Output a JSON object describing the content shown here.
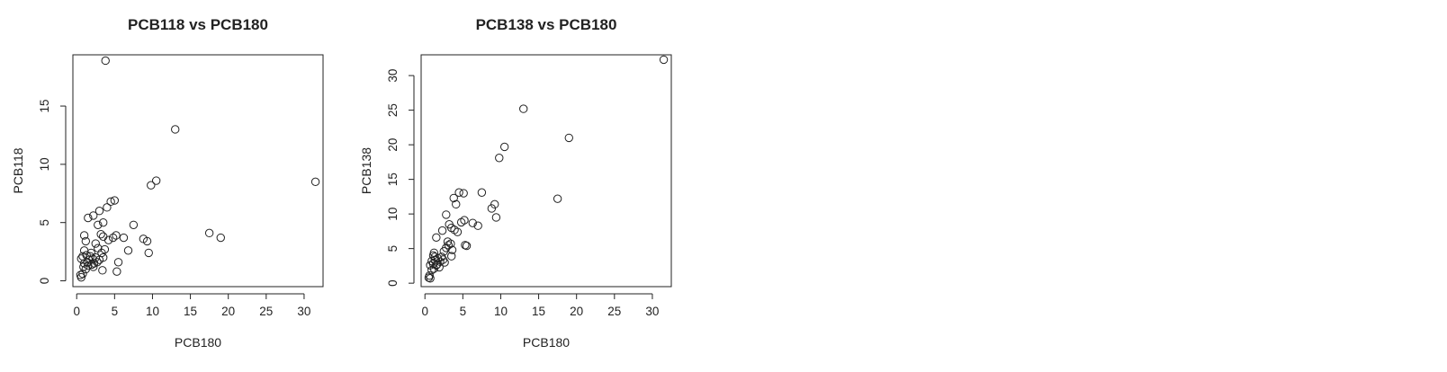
{
  "chart_data": [
    {
      "type": "scatter",
      "title": "PCB118 vs PCB180",
      "xlabel": "PCB180",
      "ylabel": "PCB118",
      "xlim": [
        -0.5,
        32.5
      ],
      "ylim": [
        -0.5,
        19.4
      ],
      "xticks": [
        0,
        5,
        10,
        15,
        20,
        25,
        30
      ],
      "yticks": [
        0,
        5,
        10,
        15
      ],
      "grid": false,
      "marker": "open-circle",
      "points": [
        [
          3.8,
          18.9
        ],
        [
          13.0,
          13.0
        ],
        [
          31.5,
          8.5
        ],
        [
          10.5,
          8.6
        ],
        [
          9.8,
          8.2
        ],
        [
          5.0,
          6.9
        ],
        [
          4.5,
          6.8
        ],
        [
          4.0,
          6.3
        ],
        [
          3.0,
          6.0
        ],
        [
          2.2,
          5.6
        ],
        [
          1.5,
          5.4
        ],
        [
          2.8,
          4.8
        ],
        [
          3.5,
          5.0
        ],
        [
          7.5,
          4.8
        ],
        [
          17.5,
          4.1
        ],
        [
          19.0,
          3.7
        ],
        [
          8.8,
          3.6
        ],
        [
          9.3,
          3.4
        ],
        [
          6.2,
          3.7
        ],
        [
          5.2,
          3.9
        ],
        [
          4.8,
          3.7
        ],
        [
          4.2,
          3.5
        ],
        [
          3.5,
          3.8
        ],
        [
          3.2,
          4.0
        ],
        [
          1.0,
          3.9
        ],
        [
          1.2,
          3.4
        ],
        [
          2.5,
          3.2
        ],
        [
          2.8,
          2.8
        ],
        [
          3.3,
          2.4
        ],
        [
          1.0,
          2.6
        ],
        [
          1.3,
          2.2
        ],
        [
          0.8,
          2.1
        ],
        [
          0.6,
          1.9
        ],
        [
          1.8,
          2.1
        ],
        [
          2.1,
          1.9
        ],
        [
          2.5,
          2.0
        ],
        [
          2.7,
          1.6
        ],
        [
          3.0,
          1.8
        ],
        [
          3.5,
          2.0
        ],
        [
          1.4,
          1.6
        ],
        [
          1.6,
          1.8
        ],
        [
          2.0,
          1.4
        ],
        [
          2.2,
          1.2
        ],
        [
          1.0,
          1.5
        ],
        [
          0.9,
          1.2
        ],
        [
          1.2,
          1.0
        ],
        [
          0.5,
          0.5
        ],
        [
          0.6,
          0.3
        ],
        [
          0.8,
          0.6
        ],
        [
          1.5,
          1.3
        ],
        [
          5.5,
          1.6
        ],
        [
          6.8,
          2.6
        ],
        [
          9.5,
          2.4
        ],
        [
          3.4,
          0.9
        ],
        [
          5.3,
          0.8
        ],
        [
          2.3,
          1.5
        ],
        [
          1.9,
          2.4
        ],
        [
          3.7,
          2.7
        ]
      ]
    },
    {
      "type": "scatter",
      "title": "PCB138 vs PCB180",
      "xlabel": "PCB180",
      "ylabel": "PCB138",
      "xlim": [
        -0.5,
        32.5
      ],
      "ylim": [
        -0.5,
        33.0
      ],
      "xticks": [
        0,
        5,
        10,
        15,
        20,
        25,
        30
      ],
      "yticks": [
        0,
        5,
        10,
        15,
        20,
        25,
        30
      ],
      "grid": false,
      "marker": "open-circle",
      "points": [
        [
          31.5,
          32.3
        ],
        [
          13.0,
          25.2
        ],
        [
          19.0,
          21.0
        ],
        [
          10.5,
          19.7
        ],
        [
          9.8,
          18.1
        ],
        [
          17.5,
          12.2
        ],
        [
          7.5,
          13.1
        ],
        [
          4.5,
          13.1
        ],
        [
          5.1,
          13.0
        ],
        [
          3.8,
          12.3
        ],
        [
          4.1,
          11.4
        ],
        [
          9.2,
          11.4
        ],
        [
          8.8,
          10.8
        ],
        [
          9.4,
          9.5
        ],
        [
          2.8,
          9.9
        ],
        [
          4.8,
          8.8
        ],
        [
          5.2,
          9.1
        ],
        [
          6.3,
          8.7
        ],
        [
          7.0,
          8.3
        ],
        [
          3.2,
          8.5
        ],
        [
          3.5,
          8.0
        ],
        [
          3.9,
          7.7
        ],
        [
          4.3,
          7.4
        ],
        [
          2.3,
          7.6
        ],
        [
          1.5,
          6.6
        ],
        [
          3.0,
          6.0
        ],
        [
          3.4,
          5.7
        ],
        [
          5.3,
          5.5
        ],
        [
          5.5,
          5.4
        ],
        [
          2.8,
          5.1
        ],
        [
          3.6,
          4.8
        ],
        [
          2.5,
          4.6
        ],
        [
          1.2,
          4.4
        ],
        [
          1.1,
          4.0
        ],
        [
          3.5,
          3.9
        ],
        [
          2.2,
          3.8
        ],
        [
          1.7,
          3.6
        ],
        [
          1.3,
          3.3
        ],
        [
          0.9,
          3.2
        ],
        [
          2.0,
          3.1
        ],
        [
          2.6,
          3.0
        ],
        [
          1.1,
          2.8
        ],
        [
          1.5,
          2.6
        ],
        [
          0.7,
          2.6
        ],
        [
          1.9,
          2.3
        ],
        [
          1.2,
          2.1
        ],
        [
          0.9,
          1.9
        ],
        [
          0.6,
          1.1
        ],
        [
          0.5,
          0.8
        ],
        [
          0.7,
          0.7
        ],
        [
          1.6,
          2.7
        ],
        [
          2.4,
          3.4
        ],
        [
          3.1,
          5.5
        ],
        [
          1.3,
          3.8
        ]
      ]
    }
  ]
}
